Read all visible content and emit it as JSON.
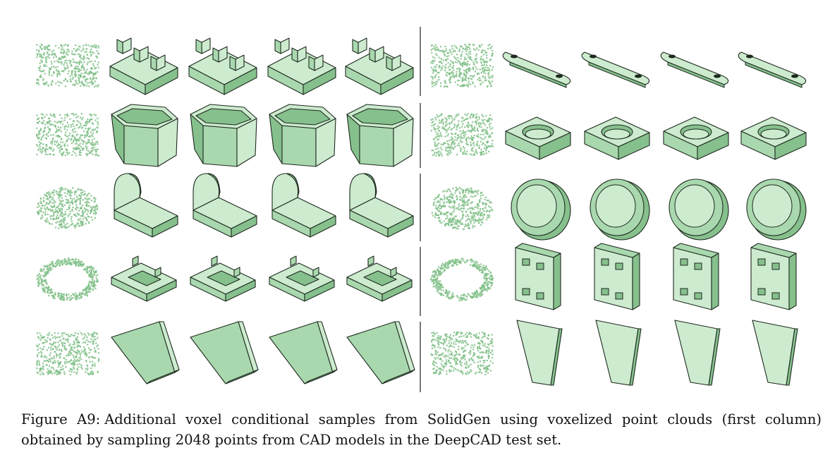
{
  "caption": {
    "label": "Figure A9:",
    "text": "Additional voxel conditional samples from SolidGen using voxelized point clouds (first column) obtained by sampling 2048 points from CAD models in the DeepCAD test set."
  },
  "colors": {
    "shape_light": "#cdebcf",
    "shape_mid": "#a9d8ae",
    "shape_dark": "#86c08d",
    "edge": "#1e2a1f",
    "points": "#7fbf86",
    "divider": "#222222"
  },
  "left_panel": {
    "rows": [
      {
        "shape": "double-slot-block"
      },
      {
        "shape": "hexagonal-cup"
      },
      {
        "shape": "arch-bracket"
      },
      {
        "shape": "rectangular-frame"
      },
      {
        "shape": "wedge-plate"
      }
    ]
  },
  "right_panel": {
    "rows": [
      {
        "shape": "flat-link-bar"
      },
      {
        "shape": "pocketed-block"
      },
      {
        "shape": "round-cap"
      },
      {
        "shape": "holed-plate"
      },
      {
        "shape": "tapered-plate"
      }
    ]
  }
}
